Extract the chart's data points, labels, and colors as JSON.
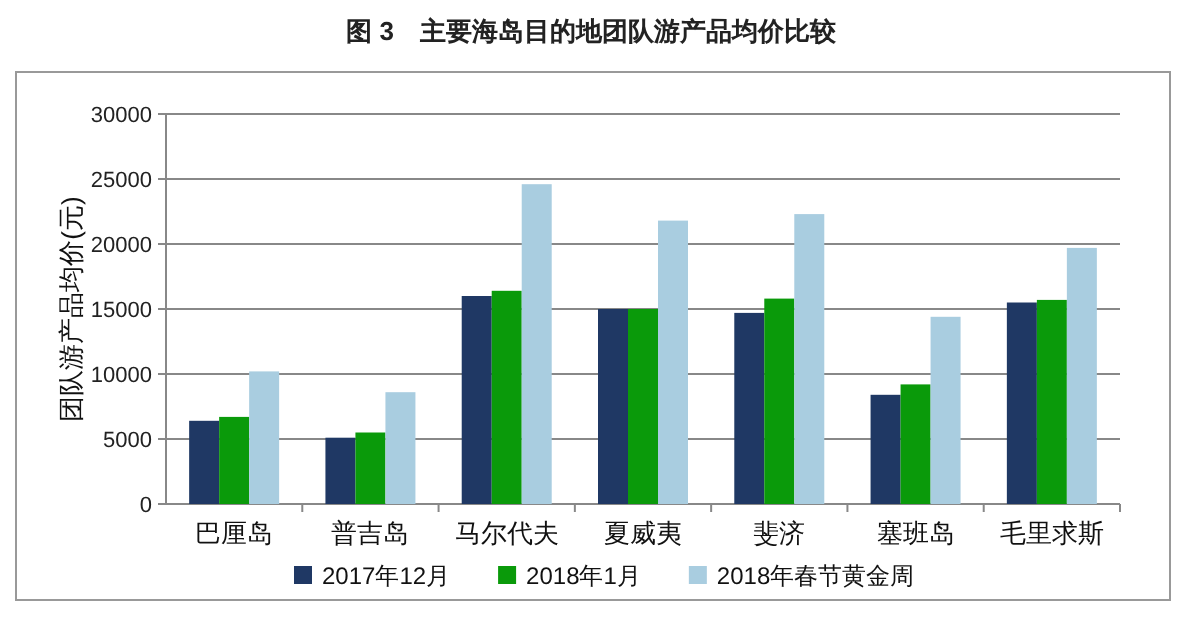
{
  "chart_data": {
    "type": "bar",
    "title": "图 3　主要海岛目的地团队游产品均价比较",
    "ylabel": "团队游产品均价(元)",
    "categories": [
      "巴厘岛",
      "普吉岛",
      "马尔代夫",
      "夏威夷",
      "斐济",
      "塞班岛",
      "毛里求斯"
    ],
    "series": [
      {
        "name": "2017年12月",
        "color": "#1f3864",
        "values": [
          6400,
          5100,
          16000,
          15000,
          14700,
          8400,
          15500
        ]
      },
      {
        "name": "2018年1月",
        "color": "#0a9a0a",
        "values": [
          6700,
          5500,
          16400,
          15000,
          15800,
          9200,
          15700
        ]
      },
      {
        "name": "2018年春节黄金周",
        "color": "#a9cde0",
        "values": [
          10200,
          8600,
          24600,
          21800,
          22300,
          14400,
          19700
        ]
      }
    ],
    "ylim": [
      0,
      30000
    ],
    "yticks": [
      0,
      5000,
      10000,
      15000,
      20000,
      25000,
      30000
    ],
    "grid": "y",
    "legend": "bottom"
  }
}
